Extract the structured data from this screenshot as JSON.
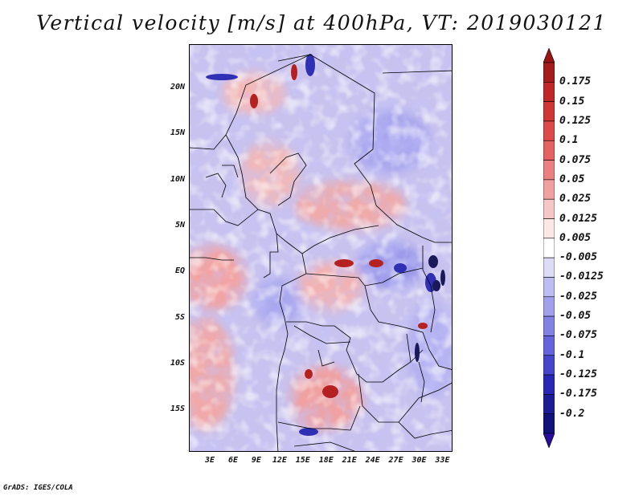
{
  "title": "Vertical velocity [m/s] at 400hPa, VT: 2019030121",
  "footer": "GrADS: IGES/COLA",
  "map": {
    "lat_labels": [
      "20N",
      "15N",
      "10N",
      "5N",
      "EQ",
      "5S",
      "10S",
      "15S"
    ],
    "lat_values": [
      20,
      15,
      10,
      5,
      0,
      -5,
      -10,
      -15
    ],
    "lon_labels": [
      "3E",
      "6E",
      "9E",
      "12E",
      "15E",
      "18E",
      "21E",
      "24E",
      "27E",
      "30E",
      "33E"
    ],
    "lon_values": [
      3,
      6,
      9,
      12,
      15,
      18,
      21,
      24,
      27,
      30,
      33
    ],
    "lat_range": [
      -19.5,
      24.8
    ],
    "lon_range": [
      0.3,
      34.3
    ]
  },
  "colorbar": {
    "labels": [
      "0.175",
      "0.15",
      "0.125",
      "0.1",
      "0.075",
      "0.05",
      "0.025",
      "0.0125",
      "0.005",
      "-0.005",
      "-0.0125",
      "-0.025",
      "-0.05",
      "-0.075",
      "-0.1",
      "-0.125",
      "-0.175",
      "-0.2"
    ],
    "colors": [
      "#a51c1c",
      "#be2828",
      "#d03636",
      "#dc4a4a",
      "#e46464",
      "#ea8080",
      "#f0a0a0",
      "#f6c6c6",
      "#fde6e6",
      "#ffffff",
      "#dcdcf8",
      "#bdbdf2",
      "#a0a0ec",
      "#8282e4",
      "#6464dc",
      "#4646cc",
      "#2828b4",
      "#1c1c96",
      "#12127a"
    ],
    "top_color": "#9a1414",
    "bottom_color": "#2a0c9a"
  }
}
